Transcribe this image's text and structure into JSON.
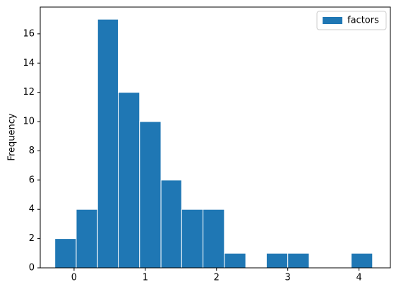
{
  "chart_data": {
    "type": "histogram",
    "y_label": "Frequency",
    "bins": [
      -0.27,
      0.03,
      0.33,
      0.62,
      0.92,
      1.22,
      1.51,
      1.81,
      2.11,
      2.41,
      2.7,
      3.0,
      3.3,
      3.6,
      3.89,
      4.19
    ],
    "series": [
      {
        "name": "factors",
        "color": "#1f77b4",
        "values": [
          2,
          4,
          17,
          12,
          10,
          6,
          4,
          4,
          1,
          0,
          1,
          1,
          0,
          0,
          1
        ]
      }
    ],
    "xlim": [
      -0.475,
      4.44
    ],
    "xticks": [
      0,
      1,
      2,
      3,
      4
    ],
    "ylim": [
      0,
      17.83
    ],
    "yticks": [
      0,
      2,
      4,
      6,
      8,
      10,
      12,
      14,
      16
    ],
    "legend": "upper right"
  }
}
